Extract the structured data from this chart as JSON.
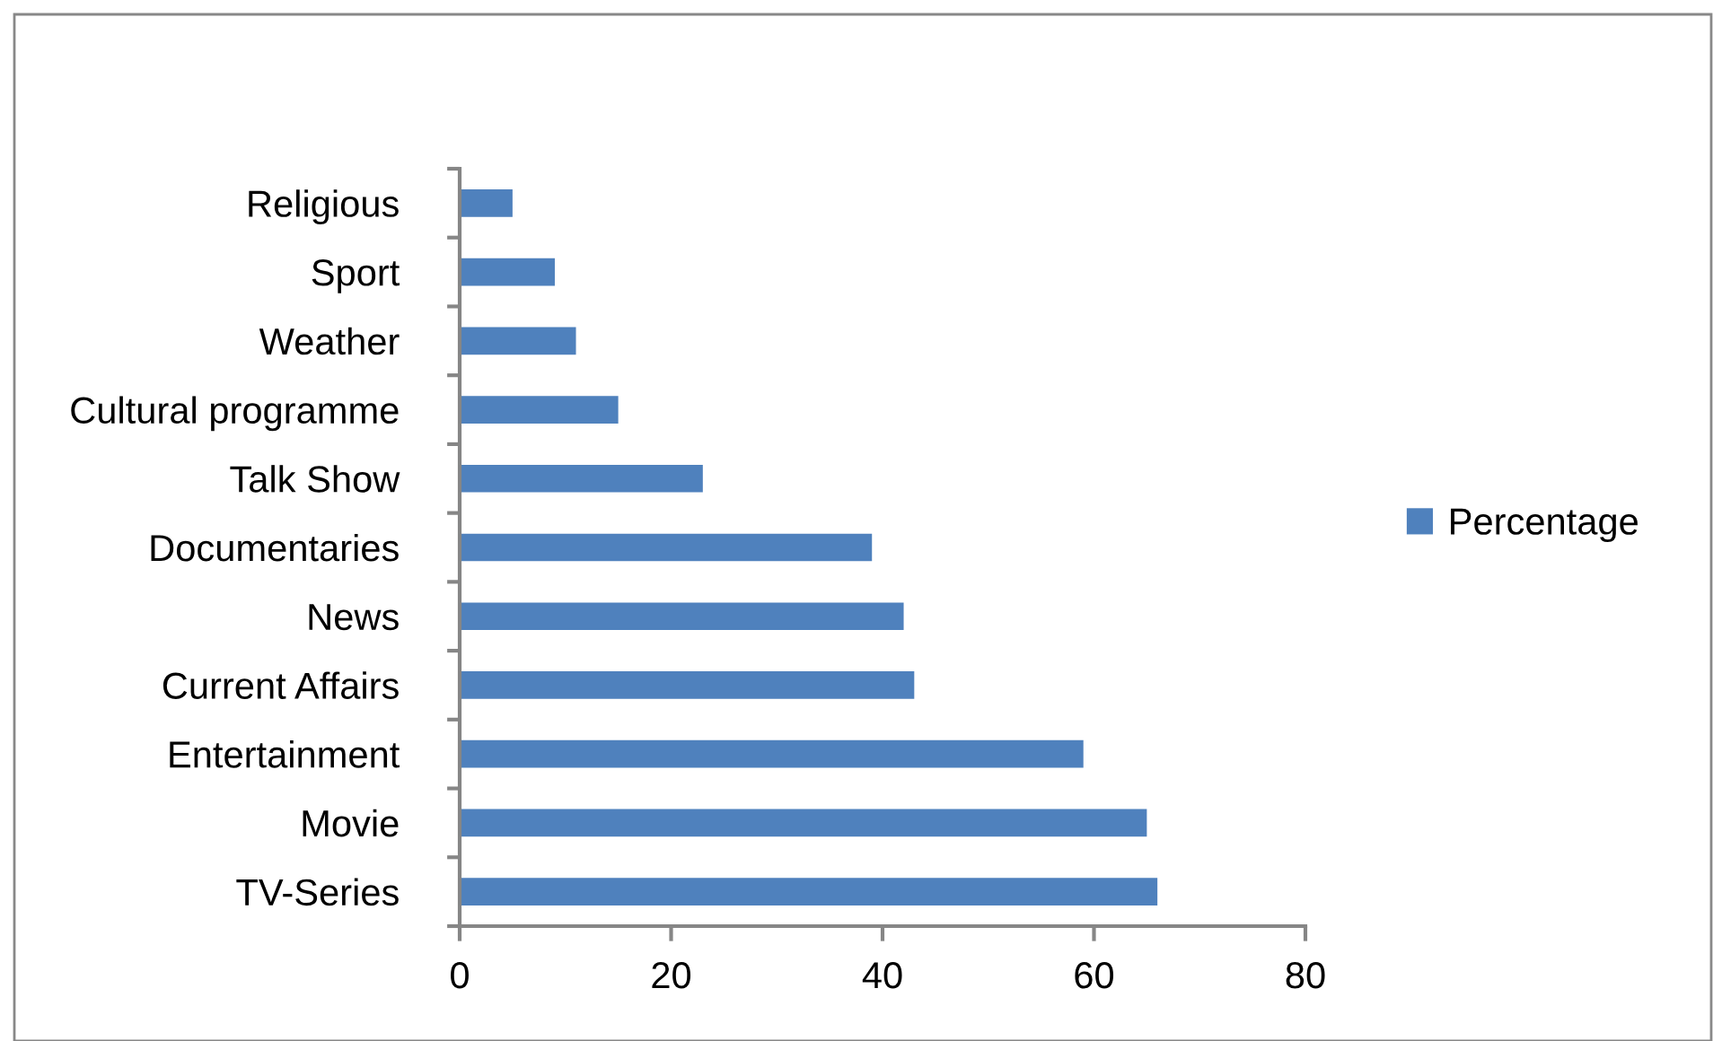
{
  "chart_data": {
    "type": "bar",
    "orientation": "horizontal",
    "categories": [
      "Religious",
      "Sport",
      "Weather",
      "Cultural programme",
      "Talk Show",
      "Documentaries",
      "News",
      "Current Affairs",
      "Entertainment",
      "Movie",
      "TV-Series"
    ],
    "series": [
      {
        "name": "Percentage",
        "color": "#4f81bd",
        "values": [
          5,
          9,
          11,
          15,
          23,
          39,
          42,
          43,
          59,
          65,
          66
        ]
      }
    ],
    "xlim": [
      0,
      80
    ],
    "xticks": [
      0,
      20,
      40,
      60,
      80
    ],
    "legend": "right"
  }
}
